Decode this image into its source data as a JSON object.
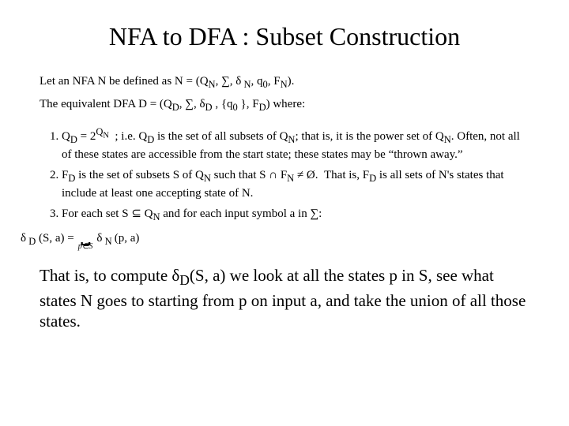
{
  "title": "NFA to DFA : Subset Construction",
  "pre1": "Let an NFA N be defined as N = (Q<sub>N</sub>, ∑, δ<sub>&nbsp;N</sub>, q<sub>0</sub>, F<sub>N</sub>).",
  "pre2": "The equivalent DFA D  = (Q<sub>D</sub>, ∑, δ<sub>D</sub> , {q<sub>0</sub> }, F<sub>D</sub>) where:",
  "item1": "Q<sub>D</sub> = 2<sup>Q<sub>N</sub></sup>&nbsp;&nbsp;; i.e. Q<sub>D</sub> is the set of all subsets of Q<sub>N</sub>; that is, it is the power set of Q<sub>N</sub>. Often, not all of these states are accessible from the start state; these states may be “thrown away.”",
  "item2": "F<sub>D</sub> is the set of subsets S of Q<sub>N</sub> such that S ∩ F<sub>N</sub> ≠ Ø.&nbsp;&nbsp;That is, F<sub>D</sub> is all sets of N's states that include at least one accepting state of N.",
  "item3": "For each set S ⊆ Q<sub>N</sub> and for each input symbol a in ∑:",
  "formula_left": "δ<sub>&nbsp;D</sub> (S, a) = ",
  "formula_limit": "p∈S",
  "formula_right": " δ<sub>&nbsp;N&nbsp;</sub>(p, a)",
  "closing": "That is, to compute δ<sub>D</sub>(S, a) we look at all the states p in S, see what states N goes to starting from p on input a, and take the union of all those states."
}
